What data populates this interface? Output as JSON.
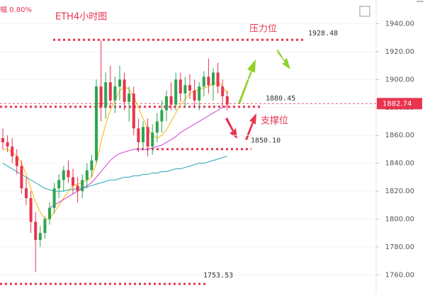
{
  "chart_data": {
    "type": "candlestick",
    "header_text": "幅 0.80%",
    "title": "ETH4小时图",
    "resistance_label": "压力位",
    "support_label": "支撑位",
    "up_color": "#2ea44f",
    "down_color": "#e8344e",
    "ylim": [
      1747,
      1957
    ],
    "yticks": [
      {
        "value": 1760,
        "label": "1760.00"
      },
      {
        "value": 1780,
        "label": "1780.00"
      },
      {
        "value": 1800,
        "label": "1800.00"
      },
      {
        "value": 1820,
        "label": "1820.00"
      },
      {
        "value": 1840,
        "label": "1840.00"
      },
      {
        "value": 1860,
        "label": "1860.00"
      },
      {
        "value": 1880,
        "label": "1880.00"
      },
      {
        "value": 1900,
        "label": "1900.00"
      },
      {
        "value": 1920,
        "label": "1920.00"
      },
      {
        "value": 1940,
        "label": "1940.00"
      }
    ],
    "grid": true,
    "last_price": 1882.74,
    "levels": [
      1928.48,
      1880.45,
      {
        "value": 1850.1,
        "label": "1850.10"
      },
      1753.53
    ],
    "candles": [
      [
        1858,
        1865,
        1850,
        1855
      ],
      [
        1855,
        1860,
        1848,
        1852
      ],
      [
        1852,
        1858,
        1840,
        1845
      ],
      [
        1845,
        1850,
        1832,
        1838
      ],
      [
        1838,
        1842,
        1818,
        1822
      ],
      [
        1822,
        1830,
        1810,
        1815
      ],
      [
        1815,
        1820,
        1790,
        1798
      ],
      [
        1798,
        1805,
        1762,
        1785
      ],
      [
        1785,
        1795,
        1780,
        1790
      ],
      [
        1790,
        1802,
        1786,
        1800
      ],
      [
        1800,
        1812,
        1796,
        1808
      ],
      [
        1808,
        1826,
        1804,
        1822
      ],
      [
        1822,
        1832,
        1815,
        1828
      ],
      [
        1828,
        1838,
        1820,
        1835
      ],
      [
        1835,
        1842,
        1826,
        1830
      ],
      [
        1830,
        1836,
        1818,
        1824
      ],
      [
        1824,
        1830,
        1812,
        1820
      ],
      [
        1820,
        1832,
        1815,
        1828
      ],
      [
        1828,
        1840,
        1822,
        1835
      ],
      [
        1835,
        1846,
        1830,
        1842
      ],
      [
        1842,
        1900,
        1840,
        1895
      ],
      [
        1895,
        1928,
        1870,
        1880
      ],
      [
        1880,
        1905,
        1872,
        1898
      ],
      [
        1898,
        1910,
        1880,
        1885
      ],
      [
        1885,
        1902,
        1876,
        1895
      ],
      [
        1895,
        1910,
        1885,
        1900
      ],
      [
        1900,
        1905,
        1878,
        1884
      ],
      [
        1884,
        1895,
        1870,
        1890
      ],
      [
        1890,
        1895,
        1860,
        1865
      ],
      [
        1865,
        1872,
        1848,
        1855
      ],
      [
        1855,
        1870,
        1850,
        1866
      ],
      [
        1866,
        1872,
        1845,
        1852
      ],
      [
        1852,
        1868,
        1846,
        1862
      ],
      [
        1862,
        1876,
        1855,
        1870
      ],
      [
        1870,
        1885,
        1862,
        1878
      ],
      [
        1878,
        1892,
        1870,
        1888
      ],
      [
        1888,
        1898,
        1878,
        1882
      ],
      [
        1882,
        1905,
        1878,
        1900
      ],
      [
        1900,
        1905,
        1884,
        1890
      ],
      [
        1890,
        1902,
        1880,
        1896
      ],
      [
        1896,
        1904,
        1886,
        1892
      ],
      [
        1892,
        1900,
        1880,
        1885
      ],
      [
        1885,
        1898,
        1878,
        1895
      ],
      [
        1895,
        1906,
        1888,
        1902
      ],
      [
        1902,
        1915,
        1890,
        1896
      ],
      [
        1896,
        1908,
        1885,
        1905
      ],
      [
        1905,
        1912,
        1890,
        1895
      ],
      [
        1895,
        1900,
        1880,
        1888
      ],
      [
        1888,
        1892,
        1878,
        1882
      ]
    ],
    "series": [
      {
        "color": "#f2b705",
        "values": [
          1850,
          1850,
          1848,
          1845,
          1840,
          1832,
          1822,
          1812,
          1805,
          1800,
          1800,
          1805,
          1810,
          1815,
          1820,
          1824,
          1825,
          1826,
          1828,
          1830,
          1840,
          1855,
          1868,
          1878,
          1885,
          1892,
          1895,
          1893,
          1888,
          1880,
          1872,
          1865,
          1860,
          1858,
          1860,
          1864,
          1870,
          1876,
          1882,
          1886,
          1890,
          1892,
          1893,
          1894,
          1895,
          1897,
          1898,
          1895,
          1890
        ]
      },
      {
        "color": "#d63fd0",
        "values": [
          null,
          null,
          null,
          null,
          null,
          null,
          null,
          null,
          null,
          null,
          1808,
          1810,
          1812,
          1814,
          1816,
          1818,
          1820,
          1822,
          1824,
          1826,
          1830,
          1834,
          1838,
          1842,
          1845,
          1847,
          1848,
          1849,
          1850,
          1850,
          1850,
          1850,
          1851,
          1852,
          1853,
          1855,
          1857,
          1859,
          1862,
          1864,
          1866,
          1868,
          1870,
          1872,
          1874,
          1876,
          1878,
          1880,
          1881
        ]
      },
      {
        "color": "#22a6b3",
        "values": [
          1840,
          1838,
          1836,
          1834,
          1832,
          1830,
          1828,
          1826,
          1824,
          1822,
          1821,
          1820,
          1820,
          1820,
          1821,
          1821,
          1822,
          1822,
          1823,
          1824,
          1825,
          1826,
          1827,
          1828,
          1828,
          1829,
          1830,
          1830,
          1831,
          1831,
          1832,
          1832,
          1833,
          1833,
          1834,
          1834,
          1835,
          1836,
          1836,
          1837,
          1838,
          1839,
          1840,
          1840,
          1841,
          1842,
          1843,
          1844,
          1845
        ]
      }
    ]
  }
}
